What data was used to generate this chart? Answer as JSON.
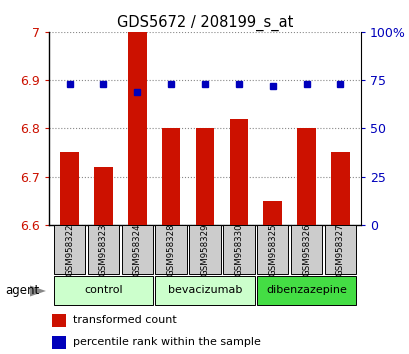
{
  "title": "GDS5672 / 208199_s_at",
  "samples": [
    "GSM958322",
    "GSM958323",
    "GSM958324",
    "GSM958328",
    "GSM958329",
    "GSM958330",
    "GSM958325",
    "GSM958326",
    "GSM958327"
  ],
  "transformed_counts": [
    6.75,
    6.72,
    7.0,
    6.8,
    6.8,
    6.82,
    6.65,
    6.8,
    6.75
  ],
  "percentile_ranks": [
    73,
    73,
    69,
    73,
    73,
    73,
    72,
    73,
    73
  ],
  "ylim_left": [
    6.6,
    7.0
  ],
  "yticks_left": [
    6.6,
    6.7,
    6.8,
    6.9,
    7.0
  ],
  "ytick_labels_left": [
    "6.6",
    "6.7",
    "6.8",
    "6.9",
    "7"
  ],
  "yticks_right": [
    0,
    25,
    50,
    75,
    100
  ],
  "ytick_labels_right": [
    "0",
    "25",
    "50",
    "75",
    "100%"
  ],
  "ylim_right": [
    0,
    100
  ],
  "bar_color": "#cc1100",
  "dot_color": "#0000bb",
  "groups": [
    {
      "label": "control",
      "indices": [
        0,
        1,
        2
      ],
      "color": "#ccffcc"
    },
    {
      "label": "bevacizumab",
      "indices": [
        3,
        4,
        5
      ],
      "color": "#ccffcc"
    },
    {
      "label": "dibenzazepine",
      "indices": [
        6,
        7,
        8
      ],
      "color": "#44dd44"
    }
  ],
  "agent_label": "agent",
  "legend_bar_label": "transformed count",
  "legend_dot_label": "percentile rank within the sample",
  "tick_color_left": "#cc1100",
  "tick_color_right": "#0000bb",
  "bar_bottom": 6.6,
  "bg_color": "#ffffff",
  "sample_box_color": "#cccccc",
  "bar_width": 0.55
}
